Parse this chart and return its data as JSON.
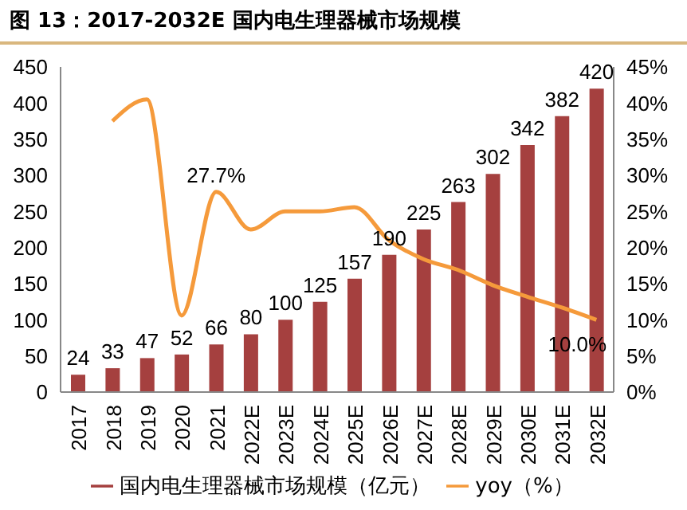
{
  "chart_data": {
    "type": "bar",
    "title": "图 13：2017-2032E 国内电生理器械市场规模",
    "categories": [
      "2017",
      "2018",
      "2019",
      "2020",
      "2021",
      "2022E",
      "2023E",
      "2024E",
      "2025E",
      "2026E",
      "2027E",
      "2028E",
      "2029E",
      "2030E",
      "2031E",
      "2032E"
    ],
    "series": [
      {
        "name": "国内电生理器械市场规模（亿元）",
        "color": "#a5403f",
        "values": [
          24,
          33,
          47,
          52,
          66,
          80,
          100,
          125,
          157,
          190,
          225,
          263,
          302,
          342,
          382,
          420
        ],
        "value_labels": [
          "24",
          "33",
          "47",
          "52",
          "66",
          "80",
          "100",
          "125",
          "157",
          "190",
          "225",
          "263",
          "302",
          "342",
          "382",
          "420"
        ]
      },
      {
        "name": "yoy（%）",
        "type": "line",
        "axis": "y2",
        "color": "#f59a3b",
        "values": [
          null,
          37.5,
          40.5,
          10.6,
          27.7,
          22.5,
          25,
          25,
          25.6,
          21,
          18.4,
          16.9,
          14.8,
          13.2,
          11.7,
          10.0
        ],
        "value_labels": [
          null,
          null,
          null,
          null,
          "27.7%",
          null,
          null,
          null,
          null,
          null,
          null,
          null,
          null,
          null,
          null,
          "10.0%"
        ]
      }
    ],
    "ylim": [
      0,
      450
    ],
    "yticks": [
      0,
      50,
      100,
      150,
      200,
      250,
      300,
      350,
      400,
      450
    ],
    "y2lim": [
      0,
      45
    ],
    "y2ticks": [
      {
        "value": 0,
        "label": "0%"
      },
      {
        "value": 5,
        "label": "5%"
      },
      {
        "value": 10,
        "label": "10%"
      },
      {
        "value": 15,
        "label": "15%"
      },
      {
        "value": 20,
        "label": "20%"
      },
      {
        "value": 25,
        "label": "25%"
      },
      {
        "value": 30,
        "label": "30%"
      },
      {
        "value": 35,
        "label": "35%"
      },
      {
        "value": 40,
        "label": "40%"
      },
      {
        "value": 45,
        "label": "45%"
      }
    ],
    "legend": "bottom",
    "marker": "none",
    "line_style": "solid"
  }
}
